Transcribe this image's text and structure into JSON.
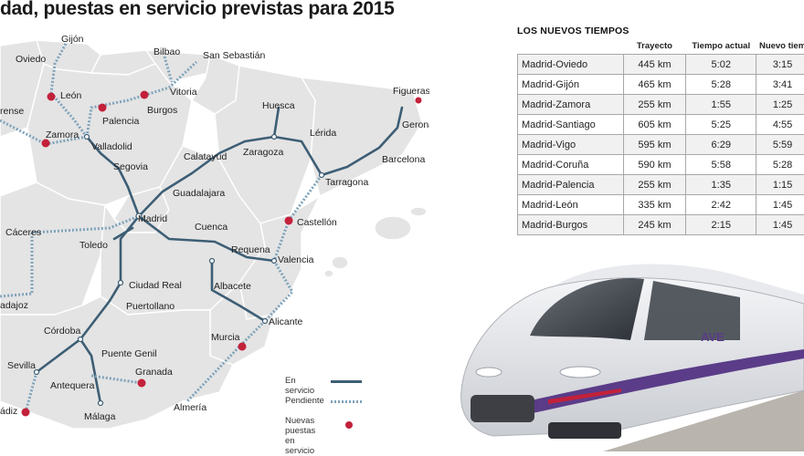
{
  "headline": "dad, puestas en servicio previstas para 2015",
  "colors": {
    "in_service": "#3d5e75",
    "pending": "#7fa3bb",
    "new_service": "#c3213a",
    "land": "#e4e4e4"
  },
  "map": {
    "cities": {
      "gijon": "Gijón",
      "oviedo": "Oviedo",
      "bilbao": "Bilbao",
      "san_sebastian": "San Sebastián",
      "vitoria": "Vitoria",
      "burgos": "Burgos",
      "leon": "León",
      "palencia": "Palencia",
      "ourense": "rense",
      "zamora": "Zamora",
      "valladolid": "Valladolid",
      "segovia": "Segovia",
      "huesca": "Huesca",
      "figueras": "Figueras",
      "gerona": "Gerona",
      "lerida": "Lérida",
      "calatayud": "Calatayud",
      "zaragoza": "Zaragoza",
      "barcelona": "Barcelona",
      "tarragona": "Tarragona",
      "guadalajara": "Guadalajara",
      "madrid": "Madrid",
      "castellon": "Castellón",
      "caceres": "Cáceres",
      "cuenca": "Cuenca",
      "toledo": "Toledo",
      "requena": "Requena",
      "valencia": "Valencia",
      "badajoz": "adajoz",
      "ciudad_real": "Ciudad Real",
      "albacete": "Albacete",
      "puertollano": "Puertollano",
      "alicante": "Alicante",
      "cordoba": "Córdoba",
      "murcia": "Murcia",
      "puente_genil": "Puente Genil",
      "sevilla": "Sevilla",
      "granada": "Granada",
      "antequera": "Antequera",
      "almeria": "Almería",
      "cadiz": "ádiz",
      "malaga": "Málaga"
    }
  },
  "legend": {
    "in_service": "En servicio",
    "pending": "Pendiente",
    "new_line1": "Nuevas puestas",
    "new_line2": "en servicio"
  },
  "table": {
    "title": "LOS NUEVOS TIEMPOS",
    "headers": [
      "Trayecto",
      "Tiempo actual",
      "Nuevo tiem"
    ],
    "rows": [
      [
        "Madrid-Oviedo",
        "445 km",
        "5:02",
        "3:15"
      ],
      [
        "Madrid-Gijón",
        "465 km",
        "5:28",
        "3:41"
      ],
      [
        "Madrid-Zamora",
        "255 km",
        "1:55",
        "1:25"
      ],
      [
        "Madrid-Santiago",
        "605 km",
        "5:25",
        "4:55"
      ],
      [
        "Madrid-Vigo",
        "595 km",
        "6:29",
        "5:59"
      ],
      [
        "Madrid-Coruña",
        "590 km",
        "5:58",
        "5:28"
      ],
      [
        "Madrid-Palencia",
        "255 km",
        "1:35",
        "1:15"
      ],
      [
        "Madrid-León",
        "335 km",
        "2:42",
        "1:45"
      ],
      [
        "Madrid-Burgos",
        "245 km",
        "2:15",
        "1:45"
      ]
    ]
  },
  "train": {
    "logo": "AVE"
  }
}
